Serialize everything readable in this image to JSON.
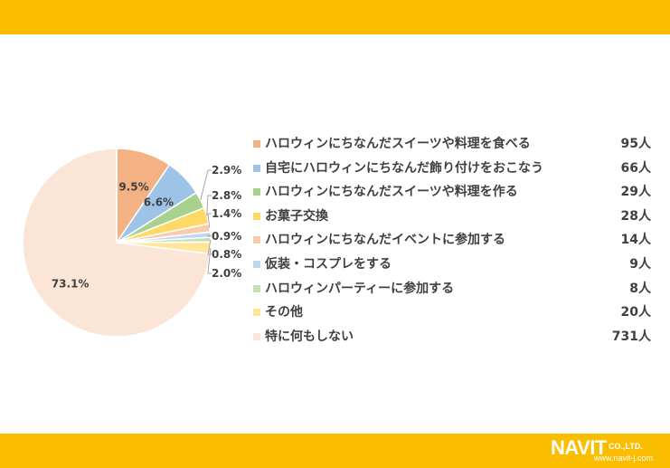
{
  "header": {},
  "chart_data": {
    "type": "pie",
    "categories": [
      "ハロウィンにちなんだスイーツや料理を食べる",
      "自宅にハロウィンにちなんだ飾り付けをおこなう",
      "ハロウィンにちなんだスイーツや料理を作る",
      "お菓子交換",
      "ハロウィンにちなんだイベントに参加する",
      "仮装・コスプレをする",
      "ハロウィンパーティーに参加する",
      "その他",
      "特に何もしない"
    ],
    "values": [
      9.5,
      6.6,
      2.9,
      2.8,
      1.4,
      0.9,
      0.8,
      2.0,
      73.1
    ],
    "data_labels": [
      "9.5%",
      "6.6%",
      "2.9%",
      "2.8%",
      "1.4%",
      "0.9%",
      "0.8%",
      "2.0%",
      "73.1%"
    ],
    "counts": [
      "95人",
      "66人",
      "29人",
      "28人",
      "14人",
      "9人",
      "8人",
      "20人",
      "731人"
    ],
    "colors": [
      "#f4b183",
      "#9dc3e6",
      "#a9d18e",
      "#ffd966",
      "#f8cbad",
      "#bdd7ee",
      "#c5e0b4",
      "#ffe699",
      "#fbe5d6"
    ],
    "legend_position": "right"
  },
  "footer": {
    "logo_text": "NAVIT",
    "logo_co": "CO.,LTD.",
    "logo_url": "www.navit-j.com"
  }
}
